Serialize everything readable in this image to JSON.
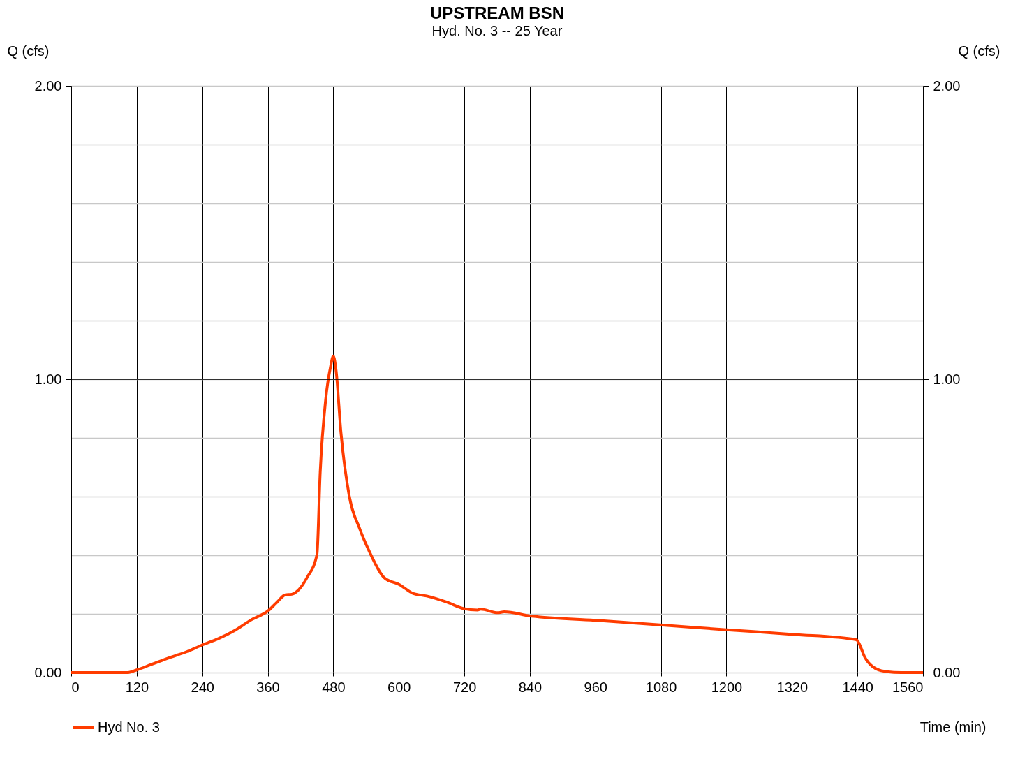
{
  "chart_data": {
    "type": "line",
    "title": "UPSTREAM BSN",
    "subtitle": "Hyd. No. 3 -- 25 Year",
    "xlabel": "Time (min)",
    "ylabel": "Q (cfs)",
    "y2label": "Q (cfs)",
    "xlim": [
      0,
      1560
    ],
    "xticks": [
      0,
      120,
      240,
      360,
      480,
      600,
      720,
      840,
      960,
      1080,
      1200,
      1320,
      1440,
      1560
    ],
    "ylim": [
      0,
      2
    ],
    "yticks": [
      {
        "value": 0,
        "label": "0.00"
      },
      {
        "value": 0.2,
        "label": null
      },
      {
        "value": 0.4,
        "label": null
      },
      {
        "value": 0.6,
        "label": null
      },
      {
        "value": 0.8,
        "label": null
      },
      {
        "value": 1,
        "label": "1.00"
      },
      {
        "value": 1.2,
        "label": null
      },
      {
        "value": 1.4,
        "label": null
      },
      {
        "value": 1.6,
        "label": null
      },
      {
        "value": 1.8,
        "label": null
      },
      {
        "value": 2,
        "label": "2.00"
      }
    ],
    "y2lim": [
      0,
      2
    ],
    "y2ticks": [
      {
        "value": 0,
        "label": "0.00"
      },
      {
        "value": 1,
        "label": "1.00"
      },
      {
        "value": 2,
        "label": "2.00"
      }
    ],
    "grid": true,
    "legend": "bottom left",
    "ref_lines": [
      {
        "axis": "y",
        "value": 1,
        "label": null,
        "color": "#000000"
      }
    ],
    "series": [
      {
        "name": "Hyd No. 3",
        "color": "#ff3c00",
        "x": [
          0,
          102,
          120,
          146,
          182,
          213,
          240,
          269,
          300,
          330,
          361,
          377,
          392,
          404,
          417,
          432,
          450,
          456,
          466,
          475,
          480,
          485,
          494,
          509,
          528,
          546,
          573,
          602,
          626,
          651,
          688,
          719,
          744,
          750,
          781,
          793,
          840,
          959,
          1083,
          1200,
          1323,
          1438,
          1443,
          1453,
          1468,
          1490,
          1520,
          1560
        ],
        "values": [
          0,
          0,
          0.009,
          0.027,
          0.052,
          0.072,
          0.094,
          0.115,
          0.144,
          0.18,
          0.211,
          0.24,
          0.265,
          0.267,
          0.283,
          0.324,
          0.402,
          0.683,
          0.93,
          1.043,
          1.079,
          1.031,
          0.818,
          0.604,
          0.492,
          0.413,
          0.324,
          0.299,
          0.27,
          0.261,
          0.24,
          0.218,
          0.213,
          0.216,
          0.204,
          0.207,
          0.193,
          0.178,
          0.162,
          0.146,
          0.13,
          0.112,
          0.099,
          0.054,
          0.02,
          0.004,
          0,
          0
        ]
      }
    ]
  }
}
